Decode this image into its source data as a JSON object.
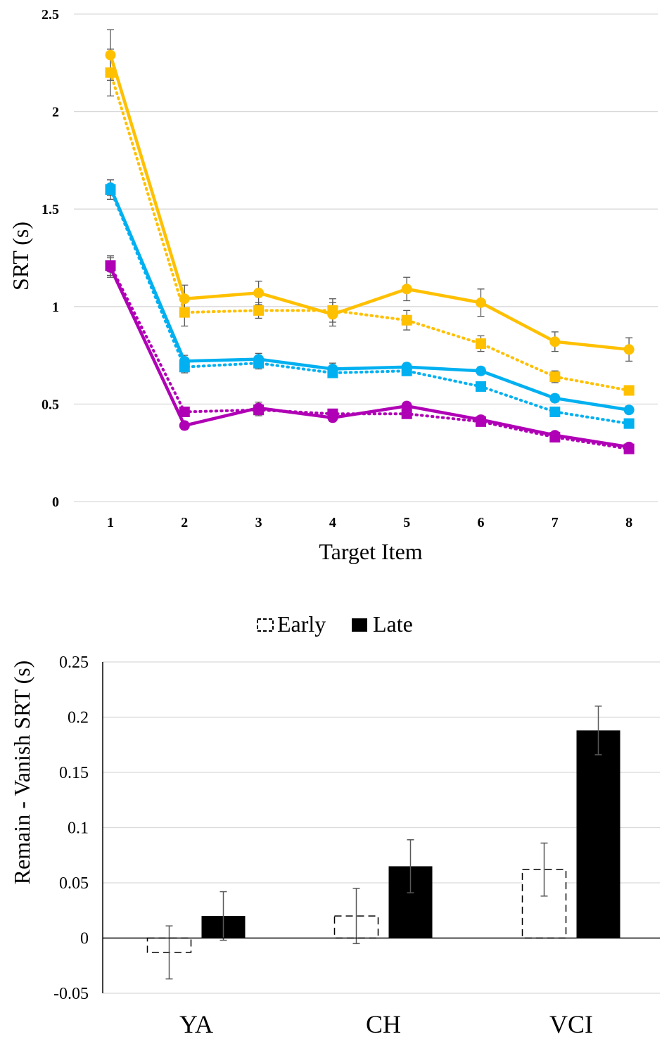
{
  "chart_data": [
    {
      "type": "line",
      "xlabel": "Target Item",
      "ylabel": "SRT (s)",
      "ylim": [
        0,
        2.5
      ],
      "yticks": [
        "0",
        "0.5",
        "1",
        "1.5",
        "2",
        "2.5"
      ],
      "categories": [
        "1",
        "2",
        "3",
        "4",
        "5",
        "6",
        "7",
        "8"
      ],
      "grid": "horizontal",
      "series": [
        {
          "color": "#FFC000",
          "style": "solid",
          "marker": "circle",
          "values": [
            2.29,
            1.04,
            1.07,
            0.96,
            1.09,
            1.02,
            0.82,
            0.78
          ],
          "errors": [
            0.13,
            0.07,
            0.06,
            0.06,
            0.06,
            0.07,
            0.05,
            0.06
          ]
        },
        {
          "color": "#FFC000",
          "style": "dotted",
          "marker": "square",
          "values": [
            2.2,
            0.97,
            0.98,
            0.98,
            0.93,
            0.81,
            0.64,
            0.57
          ],
          "errors": [
            0.12,
            0.07,
            0.04,
            0.06,
            0.05,
            0.04,
            0.03,
            0.02
          ]
        },
        {
          "color": "#00B0F0",
          "style": "solid",
          "marker": "circle",
          "values": [
            1.61,
            0.72,
            0.73,
            0.68,
            0.69,
            0.67,
            0.53,
            0.47
          ],
          "errors": [
            0.04,
            0.03,
            0.03,
            0.03,
            0.02,
            0.02,
            0.02,
            0.02
          ]
        },
        {
          "color": "#00B0F0",
          "style": "dotted",
          "marker": "square",
          "values": [
            1.6,
            0.69,
            0.71,
            0.66,
            0.67,
            0.59,
            0.46,
            0.4
          ],
          "errors": [
            0.05,
            0.03,
            0.03,
            0.02,
            0.02,
            0.02,
            0.02,
            0.02
          ]
        },
        {
          "color": "#B000B5",
          "style": "solid",
          "marker": "circle",
          "values": [
            1.2,
            0.39,
            0.48,
            0.43,
            0.49,
            0.42,
            0.34,
            0.28
          ],
          "errors": [
            0.05,
            0.02,
            0.03,
            0.02,
            0.02,
            0.02,
            0.02,
            0.01
          ]
        },
        {
          "color": "#B000B5",
          "style": "dotted",
          "marker": "square",
          "values": [
            1.21,
            0.46,
            0.47,
            0.45,
            0.45,
            0.41,
            0.33,
            0.27
          ],
          "errors": [
            0.05,
            0.02,
            0.03,
            0.02,
            0.02,
            0.02,
            0.02,
            0.01
          ]
        }
      ]
    },
    {
      "type": "bar",
      "ylabel": "Remain - Vanish SRT (s)",
      "ylim": [
        -0.05,
        0.25
      ],
      "yticks": [
        "-0.05",
        "0",
        "0.05",
        "0.1",
        "0.15",
        "0.2",
        "0.25"
      ],
      "categories": [
        "YA",
        "CH",
        "VCI"
      ],
      "legend_position": "top",
      "series": [
        {
          "name": "Early",
          "style": "dashed-outline",
          "values": [
            -0.013,
            0.02,
            0.062
          ],
          "errors": [
            0.024,
            0.025,
            0.024
          ]
        },
        {
          "name": "Late",
          "style": "solid-black",
          "values": [
            0.02,
            0.065,
            0.188
          ],
          "errors": [
            0.022,
            0.024,
            0.022
          ]
        }
      ]
    }
  ]
}
